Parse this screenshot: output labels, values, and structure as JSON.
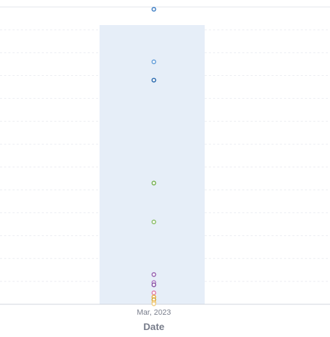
{
  "chart_data": {
    "type": "scatter",
    "xlabel": "Date",
    "categories": [
      "Mar, 2023"
    ],
    "ylim": [
      0,
      13
    ],
    "grid": true,
    "highlight_color": "#e6eef8",
    "points": [
      {
        "value": 12.9,
        "color": "#4a86c8"
      },
      {
        "value": 10.6,
        "color": "#6aa2db"
      },
      {
        "value": 9.8,
        "color": "#2e6cb0"
      },
      {
        "value": 5.3,
        "color": "#7bb45a"
      },
      {
        "value": 3.6,
        "color": "#8fc070"
      },
      {
        "value": 1.3,
        "color": "#9b6bb5"
      },
      {
        "value": 0.95,
        "color": "#b07fc8"
      },
      {
        "value": 0.85,
        "color": "#8a5aa8"
      },
      {
        "value": 0.5,
        "color": "#e084b0"
      },
      {
        "value": 0.32,
        "color": "#e8b04a"
      },
      {
        "value": 0.2,
        "color": "#d4a83a"
      },
      {
        "value": 0.08,
        "color": "#f2c46a"
      },
      {
        "value": 0.02,
        "color": "#f0d08a"
      }
    ]
  }
}
